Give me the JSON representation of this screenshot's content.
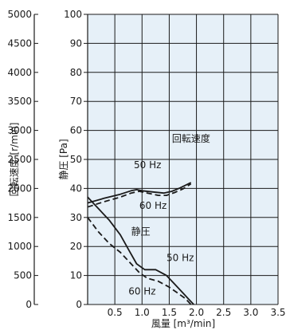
{
  "chart_data": {
    "type": "line",
    "axes": {
      "x": {
        "label": "風量 [m³/min]",
        "range": [
          0,
          3.5
        ],
        "ticks": [
          0.5,
          1.0,
          1.5,
          2.0,
          2.5,
          3.0,
          3.5
        ]
      },
      "y_left_outer": {
        "label": "回転速度 [r/min]",
        "range": [
          0,
          5000
        ],
        "ticks": [
          0,
          500,
          1000,
          1500,
          2000,
          2500,
          3000,
          3500,
          4000,
          4500,
          5000
        ]
      },
      "y_left_inner": {
        "label": "静圧 [Pa]",
        "range": [
          0,
          100
        ],
        "ticks": [
          0,
          10,
          20,
          30,
          40,
          50,
          60,
          70,
          80,
          90,
          100
        ]
      }
    },
    "grid": true,
    "colors": {
      "plot_bg": "#e6f0f8",
      "grid": "#1a1a1a",
      "line": "#1a1a1a"
    },
    "series": [
      {
        "name": "回転速度 50 Hz",
        "axis": "y_left_outer",
        "style": "solid",
        "x": [
          0,
          0.3,
          0.6,
          0.8,
          0.9,
          1.0,
          1.2,
          1.4,
          1.55,
          1.7,
          1.9
        ],
        "y": [
          1750,
          1830,
          1900,
          1960,
          1980,
          1960,
          1940,
          1920,
          1950,
          2010,
          2100
        ]
      },
      {
        "name": "回転速度 60 Hz",
        "axis": "y_left_outer",
        "style": "dashed",
        "x": [
          0,
          0.3,
          0.6,
          0.8,
          0.95,
          1.1,
          1.3,
          1.45,
          1.6,
          1.75,
          1.9
        ],
        "y": [
          1680,
          1770,
          1850,
          1920,
          1950,
          1920,
          1880,
          1880,
          1930,
          1990,
          2080
        ]
      },
      {
        "name": "静圧 50 Hz",
        "axis": "y_left_inner",
        "style": "solid",
        "x": [
          0,
          0.2,
          0.4,
          0.6,
          0.75,
          0.9,
          1.05,
          1.25,
          1.45,
          1.6,
          1.75,
          1.85,
          1.95
        ],
        "y": [
          37,
          33,
          29,
          24,
          19,
          14,
          12,
          12,
          10,
          7,
          4,
          2,
          0
        ]
      },
      {
        "name": "静圧 60 Hz",
        "axis": "y_left_inner",
        "style": "dashed",
        "x": [
          0,
          0.2,
          0.4,
          0.6,
          0.8,
          0.95,
          1.1,
          1.3,
          1.5,
          1.65,
          1.8,
          1.9
        ],
        "y": [
          30,
          25,
          21,
          18,
          14,
          11,
          9,
          8,
          6,
          4,
          2,
          0
        ]
      }
    ],
    "annotations": [
      {
        "id": "rpm_label",
        "text": "回転速度",
        "x": 1.55,
        "y": 56
      },
      {
        "id": "hz50_rpm",
        "text": "50 Hz",
        "x": 0.85,
        "y": 47
      },
      {
        "id": "hz60_rpm",
        "text": "60 Hz",
        "x": 0.95,
        "y": 33
      },
      {
        "id": "pressure_label",
        "text": "静圧",
        "x": 0.8,
        "y": 24
      },
      {
        "id": "hz50_p",
        "text": "50 Hz",
        "x": 1.45,
        "y": 15
      },
      {
        "id": "hz60_p",
        "text": "60 Hz",
        "x": 0.75,
        "y": 3.5
      }
    ]
  }
}
